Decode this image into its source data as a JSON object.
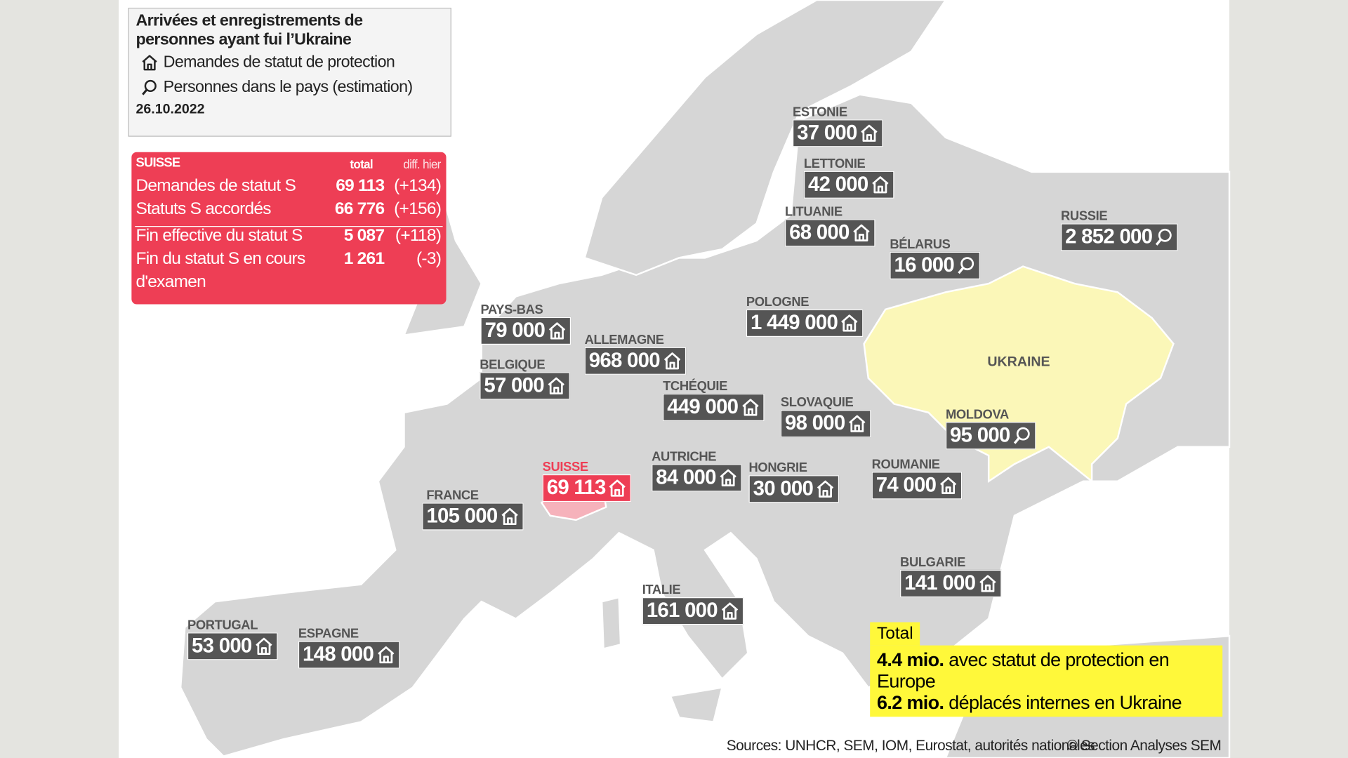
{
  "legend": {
    "title_lines": [
      "Arrivées et enregistrements de",
      "personnes ayant fui l’Ukraine"
    ],
    "items": [
      {
        "icon": "house",
        "label": "Demandes de statut de protection"
      },
      {
        "icon": "search",
        "label": "Personnes dans le pays (estimation)"
      }
    ],
    "date": "26.10.2022"
  },
  "switzerland_table": {
    "title": "SUISSE",
    "columns": [
      "total",
      "diff. hier"
    ],
    "rows": [
      {
        "label": "Demandes de statut S",
        "total": "69 113",
        "diff": "(+134)"
      },
      {
        "label": "Statuts S accordés",
        "total": "66 776",
        "diff": "(+156)"
      },
      {
        "label": "Fin effective du statut S",
        "total": "5 087",
        "diff": "(+118)"
      },
      {
        "label": "Fin du statut S en cours d'examen",
        "total": "1 261",
        "diff": "(-3)"
      }
    ]
  },
  "countries": [
    {
      "name": "ESTONIE",
      "value": "37 000",
      "icon": "house"
    },
    {
      "name": "LETTONIE",
      "value": "42 000",
      "icon": "house"
    },
    {
      "name": "LITUANIE",
      "value": "68 000",
      "icon": "house"
    },
    {
      "name": "BÉLARUS",
      "value": "16 000",
      "icon": "search"
    },
    {
      "name": "RUSSIE",
      "value": "2 852 000",
      "icon": "search"
    },
    {
      "name": "POLOGNE",
      "value": "1 449 000",
      "icon": "house"
    },
    {
      "name": "PAYS-BAS",
      "value": "79 000",
      "icon": "house"
    },
    {
      "name": "ALLEMAGNE",
      "value": "968 000",
      "icon": "house"
    },
    {
      "name": "BELGIQUE",
      "value": "57 000",
      "icon": "house"
    },
    {
      "name": "TCHÉQUIE",
      "value": "449 000",
      "icon": "house"
    },
    {
      "name": "SLOVAQUIE",
      "value": "98 000",
      "icon": "house"
    },
    {
      "name": "MOLDOVA",
      "value": "95 000",
      "icon": "search"
    },
    {
      "name": "SUISSE",
      "value": "69 113",
      "icon": "house",
      "highlight": true
    },
    {
      "name": "AUTRICHE",
      "value": "84 000",
      "icon": "house"
    },
    {
      "name": "HONGRIE",
      "value": "30 000",
      "icon": "house"
    },
    {
      "name": "ROUMANIE",
      "value": "74 000",
      "icon": "house"
    },
    {
      "name": "FRANCE",
      "value": "105 000",
      "icon": "house"
    },
    {
      "name": "BULGARIE",
      "value": "141 000",
      "icon": "house"
    },
    {
      "name": "ITALIE",
      "value": "161 000",
      "icon": "house"
    },
    {
      "name": "PORTUGAL",
      "value": "53 000",
      "icon": "house"
    },
    {
      "name": "ESPAGNE",
      "value": "148 000",
      "icon": "house"
    }
  ],
  "ukraine_label": "UKRAINE",
  "total": {
    "title": "Total",
    "lines": [
      {
        "value": "4.4 mio.",
        "text": "avec statut de protection en Europe"
      },
      {
        "value": "6.2 mio.",
        "text": "déplacés internes en Ukraine"
      }
    ]
  },
  "sources": "Sources: UNHCR, SEM, IOM, Eurostat, autorités nationales",
  "copyright": "© Section Analyses SEM"
}
